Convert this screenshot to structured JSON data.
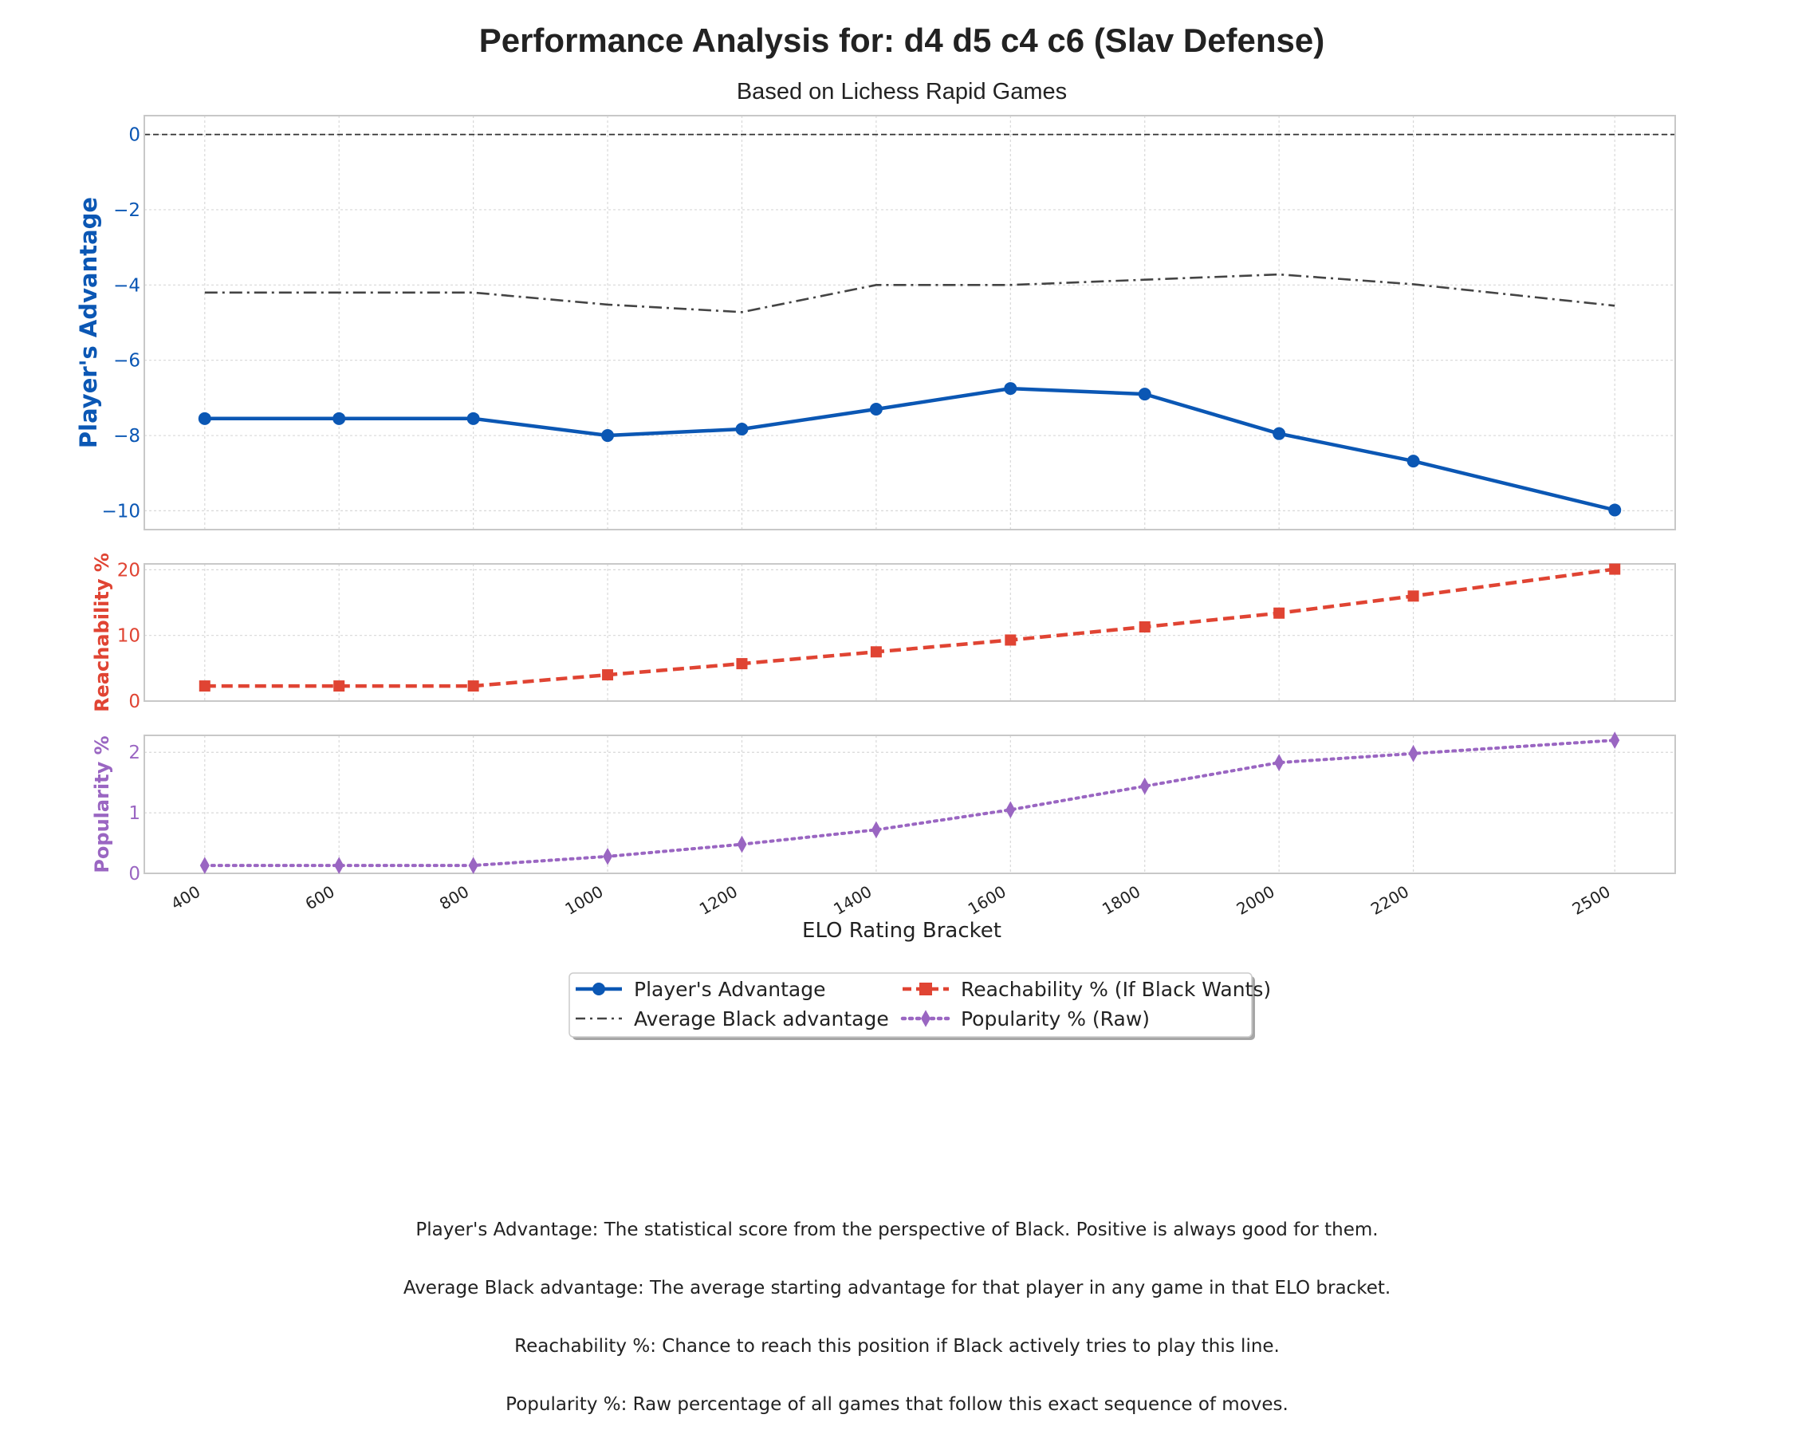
{
  "chart_data": {
    "type": "line",
    "title": "Performance Analysis for: d4 d5 c4 c6 (Slav Defense)",
    "subtitle": "Based on Lichess Rapid Games",
    "xlabel": "ELO Rating Bracket",
    "x": [
      400,
      600,
      800,
      1000,
      1200,
      1400,
      1600,
      1800,
      2000,
      2200,
      2500
    ],
    "x_tick_labels": [
      "400",
      "600",
      "800",
      "1000",
      "1200",
      "1400",
      "1600",
      "1800",
      "2000",
      "2200",
      "2500"
    ],
    "grid": true,
    "legend_position": "bottom-center",
    "panels": [
      {
        "ylabel": "Player's Advantage",
        "ylabel_color": "#0b57b4",
        "ylim": [
          -10.5,
          0.5
        ],
        "yticks": [
          0,
          -2,
          -4,
          -6,
          -8,
          -10
        ],
        "ytick_labels": [
          "0",
          "−2",
          "−4",
          "−6",
          "−8",
          "−10"
        ],
        "reference_line_y": 0,
        "series": [
          {
            "name": "Player's Advantage",
            "color": "#0b57b4",
            "marker": "circle",
            "linestyle": "solid",
            "values": [
              -7.55,
              -7.55,
              -7.55,
              -8.0,
              -7.83,
              -7.3,
              -6.75,
              -6.9,
              -7.95,
              -8.68,
              -9.98
            ]
          },
          {
            "name": "Average Black advantage",
            "color": "#444444",
            "marker": "none",
            "linestyle": "dashdot",
            "values": [
              -4.2,
              -4.2,
              -4.2,
              -4.52,
              -4.72,
              -4.0,
              -4.0,
              -3.86,
              -3.72,
              -3.98,
              -4.55
            ]
          }
        ]
      },
      {
        "ylabel": "Reachability %",
        "ylabel_color": "#e04433",
        "ylim": [
          0,
          20.9
        ],
        "yticks": [
          0,
          10,
          20
        ],
        "ytick_labels": [
          "0",
          "10",
          "20"
        ],
        "series": [
          {
            "name": "Reachability % (If Black Wants)",
            "color": "#e04433",
            "marker": "square",
            "linestyle": "dashed",
            "values": [
              2.3,
              2.3,
              2.3,
              4.0,
              5.7,
              7.5,
              9.3,
              11.3,
              13.4,
              16.0,
              20.1
            ]
          }
        ]
      },
      {
        "ylabel": "Popularity %",
        "ylabel_color": "#9a66c2",
        "ylim": [
          0,
          2.28
        ],
        "yticks": [
          0,
          1,
          2
        ],
        "ytick_labels": [
          "0",
          "1",
          "2"
        ],
        "series": [
          {
            "name": "Popularity % (Raw)",
            "color": "#9a66c2",
            "marker": "diamond",
            "linestyle": "dotted",
            "values": [
              0.13,
              0.13,
              0.13,
              0.28,
              0.48,
              0.72,
              1.05,
              1.44,
              1.83,
              1.98,
              2.2
            ]
          }
        ]
      }
    ],
    "legend": [
      {
        "label": "Player's Advantage",
        "color": "#0b57b4",
        "marker": "circle",
        "linestyle": "solid"
      },
      {
        "label": "Average Black advantage",
        "color": "#444444",
        "marker": "none",
        "linestyle": "dashdot"
      },
      {
        "label": "Reachability % (If Black Wants)",
        "color": "#e04433",
        "marker": "square",
        "linestyle": "dashed"
      },
      {
        "label": "Popularity % (Raw)",
        "color": "#9a66c2",
        "marker": "diamond",
        "linestyle": "dotted"
      }
    ]
  },
  "notes": [
    "Player's Advantage: The statistical score from the perspective of Black. Positive is always good for them.",
    "Average Black advantage: The average starting advantage for that player in any game in that ELO bracket.",
    "Reachability %: Chance to reach this position if Black actively tries to play this line.",
    "Popularity %: Raw percentage of all games that follow this exact sequence of moves."
  ]
}
